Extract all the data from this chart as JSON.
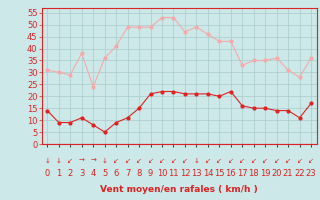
{
  "hours": [
    0,
    1,
    2,
    3,
    4,
    5,
    6,
    7,
    8,
    9,
    10,
    11,
    12,
    13,
    14,
    15,
    16,
    17,
    18,
    19,
    20,
    21,
    22,
    23
  ],
  "wind_avg": [
    14,
    9,
    9,
    11,
    8,
    5,
    9,
    11,
    15,
    21,
    22,
    22,
    21,
    21,
    21,
    20,
    22,
    16,
    15,
    15,
    14,
    14,
    11,
    17
  ],
  "wind_gust": [
    31,
    30,
    29,
    38,
    24,
    36,
    41,
    49,
    49,
    49,
    53,
    53,
    47,
    49,
    46,
    43,
    43,
    33,
    35,
    35,
    36,
    31,
    28,
    36
  ],
  "avg_color": "#dd2222",
  "gust_color": "#f4aaaa",
  "background_color": "#cce8e8",
  "grid_color": "#aacccc",
  "axis_color": "#dd2222",
  "xlabel": "Vent moyen/en rafales ( km/h )",
  "ylim": [
    0,
    57
  ],
  "yticks": [
    0,
    5,
    10,
    15,
    20,
    25,
    30,
    35,
    40,
    45,
    50,
    55
  ],
  "label_fontsize": 6.5,
  "tick_fontsize": 6.0,
  "arrow_chars": [
    "↓",
    "↓",
    "↙",
    "→",
    "→",
    "↓",
    "↙",
    "↙",
    "↙",
    "↙",
    "↙",
    "↙",
    "↙",
    "↓",
    "↙",
    "↙",
    "↙",
    "↙",
    "↙",
    "↙",
    "↙",
    "↙",
    "↙",
    "↙"
  ]
}
